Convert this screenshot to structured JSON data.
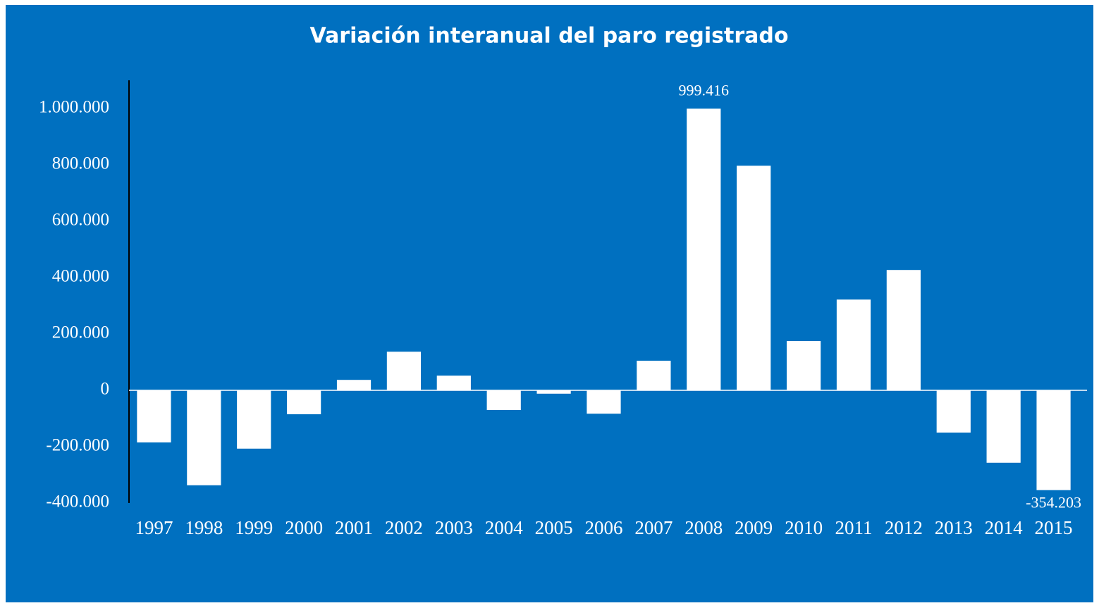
{
  "chart_data": {
    "type": "bar",
    "title": "Variación interanual del paro registrado",
    "categories": [
      "1997",
      "1998",
      "1999",
      "2000",
      "2001",
      "2002",
      "2003",
      "2004",
      "2005",
      "2006",
      "2007",
      "2008",
      "2009",
      "2010",
      "2011",
      "2012",
      "2013",
      "2014",
      "2015"
    ],
    "values": [
      -185000,
      -337000,
      -207000,
      -85000,
      37000,
      137000,
      52000,
      -70000,
      -12000,
      -83000,
      105000,
      999416,
      797000,
      175000,
      322000,
      427000,
      -150000,
      -257000,
      -354203
    ],
    "value_labels": [
      null,
      null,
      null,
      null,
      null,
      null,
      null,
      null,
      null,
      null,
      null,
      "999.416",
      null,
      null,
      null,
      null,
      null,
      null,
      "-354.203"
    ],
    "color": "#ffffff",
    "ylim": [
      -400000,
      1100000
    ],
    "yticks": [
      {
        "value": -400000,
        "label": "-400.000"
      },
      {
        "value": -200000,
        "label": "-200.000"
      },
      0,
      {
        "value": 200000,
        "label": "200.000"
      },
      {
        "value": 400000,
        "label": "400.000"
      },
      {
        "value": 600000,
        "label": "600.000"
      },
      {
        "value": 800000,
        "label": "800.000"
      },
      {
        "value": 1000000,
        "label": "1.000.000"
      }
    ],
    "grid": false
  }
}
